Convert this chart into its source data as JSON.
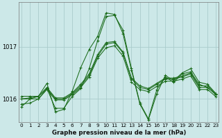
{
  "title": "Graphe pression niveau de la mer (hPa)",
  "bg_color": "#cce8e8",
  "grid_color": "#aacccc",
  "line_color": "#1a6b1a",
  "x_ticks": [
    0,
    1,
    2,
    3,
    4,
    5,
    6,
    7,
    8,
    9,
    10,
    11,
    12,
    13,
    14,
    15,
    16,
    17,
    18,
    19,
    20,
    21,
    22,
    23
  ],
  "y_ticks": [
    1016,
    1017
  ],
  "ylim": [
    1015.55,
    1017.85
  ],
  "xlim": [
    -0.3,
    23.3
  ],
  "series": [
    [
      1015.85,
      1016.0,
      1016.05,
      1016.3,
      1015.75,
      1015.8,
      1016.15,
      1016.6,
      1016.95,
      1017.2,
      1017.65,
      1017.62,
      1017.25,
      1016.55,
      1015.9,
      1015.6,
      1016.1,
      1016.45,
      1016.35,
      1016.5,
      1016.58,
      1016.32,
      1016.28,
      1016.1
    ],
    [
      1016.0,
      1016.02,
      1016.05,
      1016.2,
      1016.0,
      1016.0,
      1016.1,
      1016.25,
      1016.45,
      1016.82,
      1017.05,
      1017.08,
      1016.88,
      1016.38,
      1016.22,
      1016.18,
      1016.28,
      1016.38,
      1016.38,
      1016.42,
      1016.48,
      1016.22,
      1016.22,
      1016.08
    ],
    [
      1016.0,
      1016.0,
      1016.0,
      1016.18,
      1015.98,
      1015.98,
      1016.08,
      1016.22,
      1016.42,
      1016.78,
      1016.98,
      1017.02,
      1016.82,
      1016.32,
      1016.18,
      1016.14,
      1016.24,
      1016.34,
      1016.34,
      1016.38,
      1016.44,
      1016.18,
      1016.18,
      1016.04
    ],
    [
      1015.9,
      1015.92,
      1016.0,
      1016.2,
      1015.82,
      1015.82,
      1016.05,
      1016.2,
      1016.58,
      1017.12,
      1017.58,
      1017.6,
      1017.32,
      1016.58,
      1015.92,
      1015.62,
      1016.18,
      1016.42,
      1016.32,
      1016.48,
      1016.52,
      1016.28,
      1016.22,
      1016.08
    ],
    [
      1016.05,
      1016.05,
      1016.05,
      1016.22,
      1016.02,
      1016.02,
      1016.12,
      1016.28,
      1016.48,
      1016.85,
      1017.08,
      1017.1,
      1016.9,
      1016.4,
      1016.25,
      1016.2,
      1016.3,
      1016.4,
      1016.4,
      1016.44,
      1016.5,
      1016.25,
      1016.25,
      1016.1
    ]
  ]
}
